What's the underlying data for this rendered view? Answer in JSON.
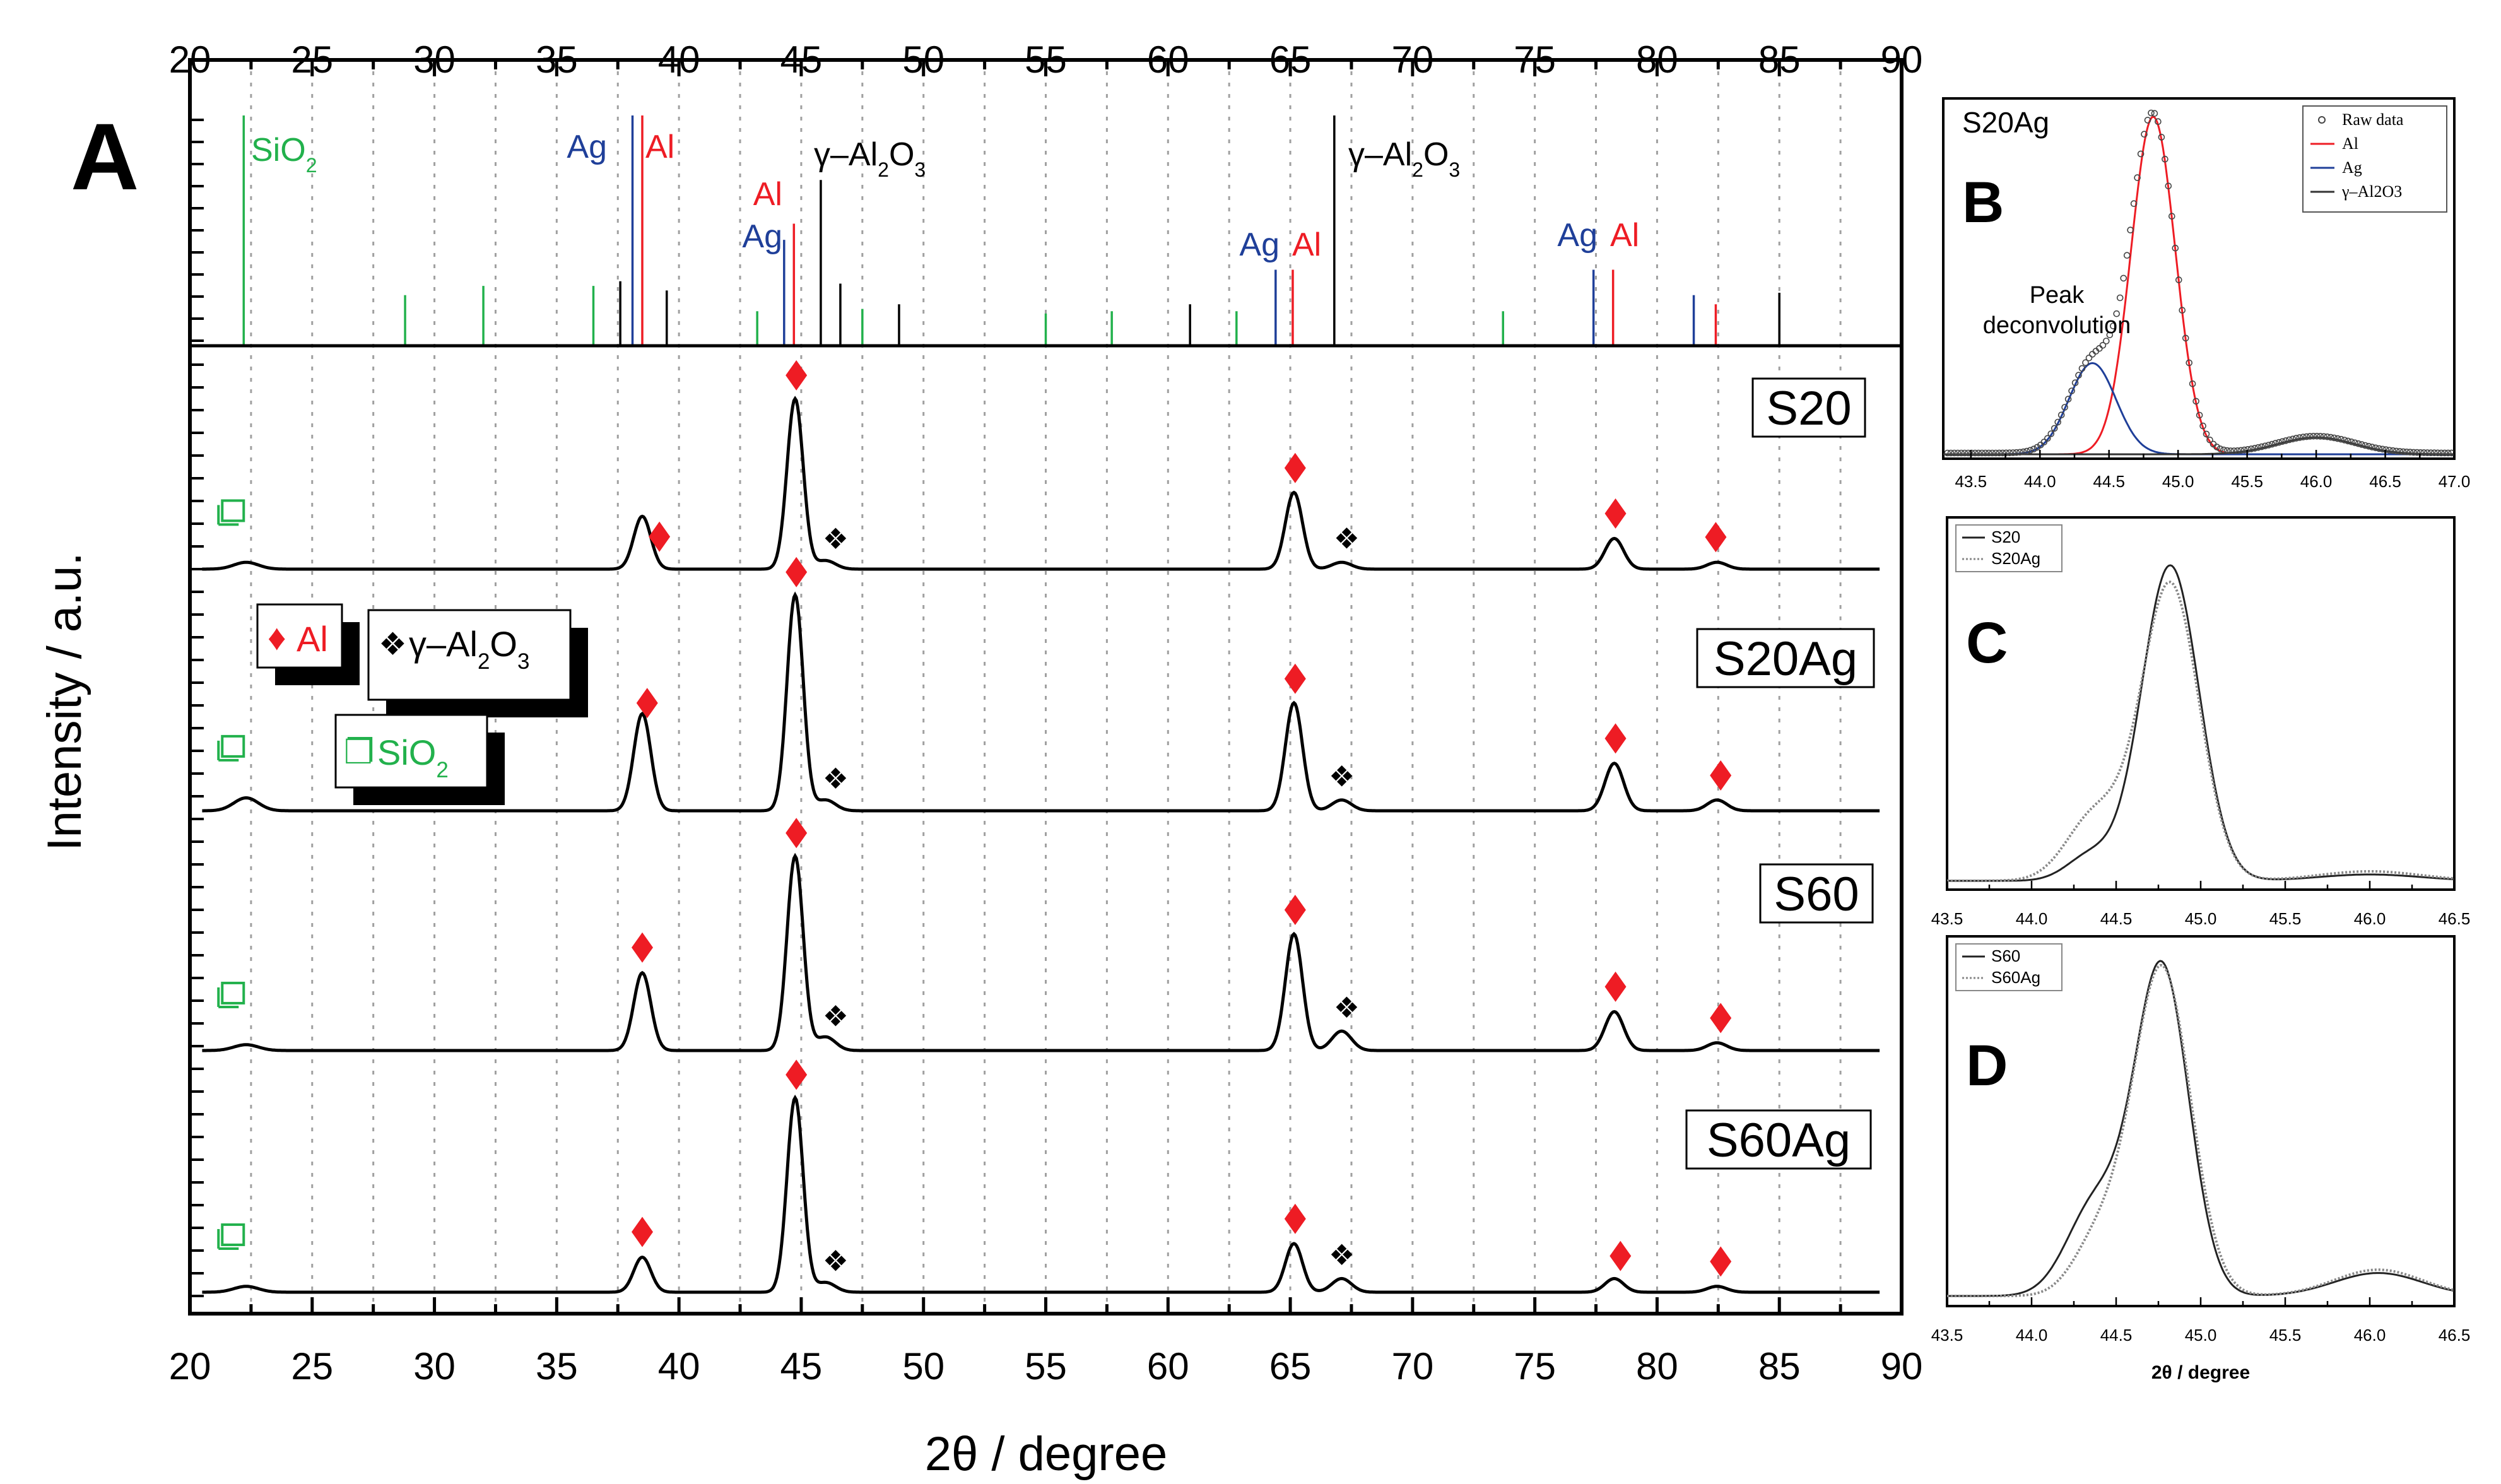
{
  "figure": {
    "panel_labels": [
      "A",
      "B",
      "C",
      "D"
    ],
    "colors": {
      "Al": "#ee1c24",
      "Ag": "#1f3f99",
      "SiO2": "#22b14c",
      "gAl2O3": "#000000",
      "grid": "#a0a0a0"
    }
  },
  "chart_data": [
    {
      "panel": "A",
      "type": "line",
      "xlabel": "2θ / degree",
      "ylabel": "Intensity / a.u.",
      "xlim": [
        20,
        90
      ],
      "xticks": [
        20,
        25,
        30,
        35,
        40,
        45,
        50,
        55,
        60,
        65,
        70,
        75,
        80,
        85,
        90
      ],
      "reference_patterns": {
        "SiO2": [
          [
            22.2,
            100
          ],
          [
            28.8,
            22
          ],
          [
            32.0,
            26
          ],
          [
            36.5,
            26
          ],
          [
            43.2,
            15
          ],
          [
            47.5,
            16
          ],
          [
            55.0,
            14
          ],
          [
            57.7,
            15
          ],
          [
            62.8,
            15
          ],
          [
            73.7,
            15
          ]
        ],
        "Ag": [
          [
            38.1,
            100
          ],
          [
            44.3,
            46
          ],
          [
            64.4,
            33
          ],
          [
            77.4,
            33
          ],
          [
            81.5,
            22
          ]
        ],
        "Al": [
          [
            38.5,
            100
          ],
          [
            44.7,
            53
          ],
          [
            65.1,
            33
          ],
          [
            78.2,
            33
          ],
          [
            82.4,
            18
          ]
        ],
        "gAl2O3": [
          [
            37.6,
            28
          ],
          [
            39.5,
            24
          ],
          [
            45.8,
            72
          ],
          [
            46.6,
            27
          ],
          [
            49.0,
            18
          ],
          [
            60.9,
            18
          ],
          [
            66.8,
            100
          ],
          [
            85.0,
            23
          ]
        ]
      },
      "reference_labels": [
        {
          "phase": "SiO2",
          "text": "SiO",
          "sub": "2"
        },
        {
          "phase": "Ag",
          "text": "Ag"
        },
        {
          "phase": "Al",
          "text": "Al"
        },
        {
          "phase": "Ag",
          "text": "Ag"
        },
        {
          "phase": "Al",
          "text": "Al"
        },
        {
          "phase": "gAl2O3",
          "text": "γ–Al",
          "sub": "2",
          "text2": "O",
          "sub2": "3"
        },
        {
          "phase": "Ag",
          "text": "Ag"
        },
        {
          "phase": "Al",
          "text": "Al"
        },
        {
          "phase": "gAl2O3",
          "text": "γ–Al",
          "sub": "2",
          "text2": "O",
          "sub2": "3"
        },
        {
          "phase": "Ag",
          "text": "Ag"
        },
        {
          "phase": "Al",
          "text": "Al"
        }
      ],
      "series": [
        {
          "name": "S20",
          "peaks": [
            {
              "x": 22.3,
              "h": 4,
              "w": 0.5
            },
            {
              "x": 38.5,
              "h": 31,
              "w": 0.35
            },
            {
              "x": 44.75,
              "h": 100,
              "w": 0.33
            },
            {
              "x": 46.0,
              "h": 5,
              "w": 0.4
            },
            {
              "x": 65.15,
              "h": 45,
              "w": 0.35
            },
            {
              "x": 67.1,
              "h": 4,
              "w": 0.4
            },
            {
              "x": 78.25,
              "h": 18,
              "w": 0.38
            },
            {
              "x": 82.45,
              "h": 4,
              "w": 0.4
            }
          ],
          "markers": {
            "Al": [
              39.2,
              44.8,
              65.2,
              78.3,
              82.4
            ],
            "gAl2O3": [
              46.3,
              67.2
            ],
            "SiO2": [
              22.2
            ]
          }
        },
        {
          "name": "S20Ag",
          "peaks": [
            {
              "x": 22.3,
              "h": 6,
              "w": 0.5
            },
            {
              "x": 38.5,
              "h": 45,
              "w": 0.35
            },
            {
              "x": 44.75,
              "h": 100,
              "w": 0.33
            },
            {
              "x": 46.0,
              "h": 5,
              "w": 0.4
            },
            {
              "x": 65.15,
              "h": 50,
              "w": 0.35
            },
            {
              "x": 67.1,
              "h": 5,
              "w": 0.4
            },
            {
              "x": 78.25,
              "h": 22,
              "w": 0.38
            },
            {
              "x": 82.45,
              "h": 5,
              "w": 0.4
            }
          ],
          "markers": {
            "Al": [
              38.7,
              44.8,
              65.2,
              78.3,
              82.6
            ],
            "gAl2O3": [
              46.3,
              67.0
            ],
            "SiO2": [
              22.2
            ]
          }
        },
        {
          "name": "S60",
          "peaks": [
            {
              "x": 22.3,
              "h": 3,
              "w": 0.5
            },
            {
              "x": 38.5,
              "h": 40,
              "w": 0.35
            },
            {
              "x": 44.75,
              "h": 100,
              "w": 0.33
            },
            {
              "x": 46.0,
              "h": 7,
              "w": 0.4
            },
            {
              "x": 65.15,
              "h": 60,
              "w": 0.35
            },
            {
              "x": 67.1,
              "h": 10,
              "w": 0.4
            },
            {
              "x": 78.25,
              "h": 20,
              "w": 0.38
            },
            {
              "x": 82.45,
              "h": 4,
              "w": 0.4
            }
          ],
          "markers": {
            "Al": [
              38.5,
              44.8,
              65.2,
              78.3,
              82.6
            ],
            "gAl2O3": [
              46.3,
              67.2
            ],
            "SiO2": [
              22.2
            ]
          }
        },
        {
          "name": "S60Ag",
          "peaks": [
            {
              "x": 22.3,
              "h": 3,
              "w": 0.5
            },
            {
              "x": 38.5,
              "h": 18,
              "w": 0.35
            },
            {
              "x": 44.75,
              "h": 100,
              "w": 0.33
            },
            {
              "x": 46.0,
              "h": 5,
              "w": 0.4
            },
            {
              "x": 65.15,
              "h": 25,
              "w": 0.35
            },
            {
              "x": 67.1,
              "h": 7,
              "w": 0.4
            },
            {
              "x": 78.25,
              "h": 7,
              "w": 0.38
            },
            {
              "x": 82.45,
              "h": 3,
              "w": 0.4
            }
          ],
          "markers": {
            "Al": [
              38.5,
              44.8,
              65.2,
              78.5,
              82.6
            ],
            "gAl2O3": [
              46.3,
              67.0
            ],
            "SiO2": [
              22.2
            ]
          }
        }
      ],
      "legend": [
        {
          "symbol": "♦",
          "text": "Al",
          "phase": "Al"
        },
        {
          "symbol": "❖",
          "text": "γ–Al",
          "sub": "2",
          "text2": "O",
          "sub2": "3",
          "phase": "gAl2O3"
        },
        {
          "symbol": "❐",
          "text": "SiO",
          "sub": "2",
          "phase": "SiO2"
        }
      ]
    },
    {
      "panel": "B",
      "type": "line",
      "title": "S20Ag",
      "xlim": [
        43.3,
        47.0
      ],
      "xticks": [
        43.5,
        44.0,
        44.5,
        45.0,
        45.5,
        46.0,
        46.5,
        47.0
      ],
      "annotation": [
        "Peak",
        "deconvolution"
      ],
      "legend": [
        "Raw data",
        "Al",
        "Ag",
        "γ–Al2O3"
      ],
      "series": [
        {
          "name": "Al",
          "peak": {
            "x": 44.82,
            "h": 100,
            "w": 0.16
          }
        },
        {
          "name": "Ag",
          "peak": {
            "x": 44.38,
            "h": 27,
            "w": 0.17
          }
        },
        {
          "name": "γ–Al2O3",
          "peak": {
            "x": 46.0,
            "h": 5,
            "w": 0.28
          }
        }
      ]
    },
    {
      "panel": "C",
      "type": "line",
      "xlim": [
        43.5,
        46.5
      ],
      "xticks": [
        43.5,
        44.0,
        44.5,
        45.0,
        45.5,
        46.0,
        46.5
      ],
      "legend": [
        "S20",
        "S20Ag"
      ],
      "series": [
        {
          "name": "S20",
          "peaks": [
            {
              "x": 44.82,
              "h": 100,
              "w": 0.17
            },
            {
              "x": 44.35,
              "h": 8,
              "w": 0.14
            },
            {
              "x": 46.0,
              "h": 2,
              "w": 0.3
            }
          ]
        },
        {
          "name": "S20Ag",
          "peaks": [
            {
              "x": 44.82,
              "h": 94,
              "w": 0.17
            },
            {
              "x": 44.38,
              "h": 21,
              "w": 0.17
            },
            {
              "x": 46.0,
              "h": 3,
              "w": 0.3
            }
          ]
        }
      ]
    },
    {
      "panel": "D",
      "type": "line",
      "xlim": [
        43.5,
        46.5
      ],
      "xticks": [
        43.5,
        44.0,
        44.5,
        45.0,
        45.5,
        46.0,
        46.5
      ],
      "xlabel": "2θ / degree",
      "legend": [
        "S60",
        "S60Ag"
      ],
      "series": [
        {
          "name": "S60",
          "peaks": [
            {
              "x": 44.77,
              "h": 100,
              "w": 0.16
            },
            {
              "x": 44.38,
              "h": 28,
              "w": 0.17
            },
            {
              "x": 46.05,
              "h": 7,
              "w": 0.26
            }
          ]
        },
        {
          "name": "S60Ag",
          "peaks": [
            {
              "x": 44.77,
              "h": 100,
              "w": 0.17
            },
            {
              "x": 44.4,
              "h": 17,
              "w": 0.15
            },
            {
              "x": 46.05,
              "h": 8,
              "w": 0.26
            }
          ]
        }
      ]
    }
  ]
}
